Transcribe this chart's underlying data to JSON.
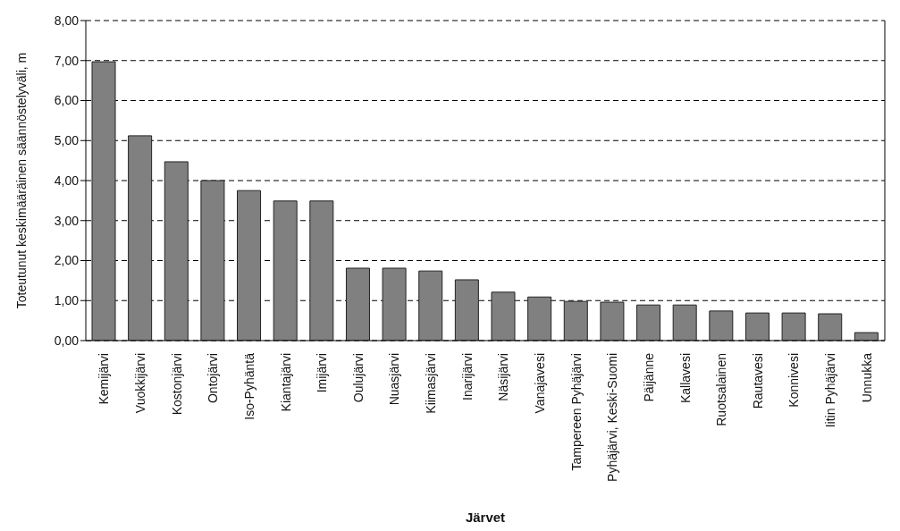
{
  "chart_data": {
    "type": "bar",
    "xlabel": "Järvet",
    "ylabel": "Toteutunut keskimääräinen säännöstelyväli, m",
    "categories": [
      "Kemijärvi",
      "Vuokkijärvi",
      "Kostonjärvi",
      "Ontojärvi",
      "Iso-Pyhäntä",
      "Kiantajärvi",
      "Imijärvi",
      "Oulujärvi",
      "Nuasjärvi",
      "Kiimasjärvi",
      "Inarijärvi",
      "Näsijärvi",
      "Vanajavesi",
      "Tampereen Pyhäjärvi",
      "Pyhäjärvi, Keski-Suomi",
      "Päijänne",
      "Kallavesi",
      "Ruotsalainen",
      "Rautavesi",
      "Konnivesi",
      "Iitin Pyhäjärvi",
      "Unnukka"
    ],
    "values": [
      6.97,
      5.12,
      4.47,
      4.0,
      3.75,
      3.49,
      3.49,
      1.81,
      1.81,
      1.74,
      1.52,
      1.21,
      1.09,
      0.98,
      0.96,
      0.89,
      0.89,
      0.74,
      0.69,
      0.69,
      0.67,
      0.2
    ],
    "color": "#808080",
    "ylim": [
      0,
      8
    ],
    "yticks": [
      {
        "value": 0,
        "label": "0,00"
      },
      {
        "value": 1,
        "label": "1,00"
      },
      {
        "value": 2,
        "label": "2,00"
      },
      {
        "value": 3,
        "label": "3,00"
      },
      {
        "value": 4,
        "label": "4,00"
      },
      {
        "value": 5,
        "label": "5,00"
      },
      {
        "value": 6,
        "label": "6,00"
      },
      {
        "value": 7,
        "label": "7,00"
      },
      {
        "value": 8,
        "label": "8,00"
      }
    ],
    "grid": "y"
  }
}
